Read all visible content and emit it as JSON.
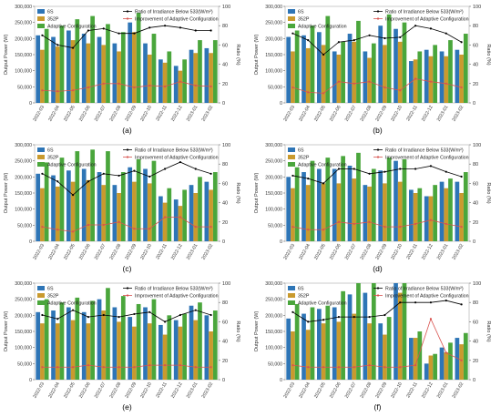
{
  "figure": {
    "panel_labels": [
      "(a)",
      "(b)",
      "(c)",
      "(d)",
      "(e)",
      "(f)"
    ]
  },
  "colors": {
    "s6": "#2e75b6",
    "s352p": "#c99a2e",
    "adaptive": "#4aa63c",
    "ratio": "#000000",
    "improvement": "#d9534f"
  },
  "chart_data": [
    {
      "type": "bar",
      "panel": "(a)",
      "categories": [
        "2022-03",
        "2022-04",
        "2022-05",
        "2022-06",
        "2022-07",
        "2022-08",
        "2022-09",
        "2022-10",
        "2022-11",
        "2022-12",
        "2023-01",
        "2023-02"
      ],
      "ylabel": "Output Power (W)",
      "y2label": "Ratio (%)",
      "ylim": [
        0,
        300000
      ],
      "y2lim": [
        0,
        100
      ],
      "yticks": [
        "0",
        "50,000",
        "100,000",
        "150,000",
        "200,000",
        "250,000",
        "300,000"
      ],
      "y2ticks": [
        "0",
        "20",
        "40",
        "60",
        "80",
        "100"
      ],
      "legend": [
        "6S",
        "352P",
        "Adaptive Configuration",
        "Ratio of Irradiance Below 533(W/m²)",
        "Improvement of Adaptive Configuration"
      ],
      "series": [
        {
          "name": "6S",
          "kind": "bar",
          "values": [
            210000,
            205000,
            225000,
            215000,
            205000,
            185000,
            250000,
            185000,
            135000,
            115000,
            165000,
            170000
          ]
        },
        {
          "name": "352P",
          "kind": "bar",
          "values": [
            165000,
            175000,
            195000,
            185000,
            180000,
            160000,
            220000,
            150000,
            125000,
            100000,
            155000,
            155000
          ]
        },
        {
          "name": "Adaptive Configuration",
          "kind": "bar",
          "values": [
            230000,
            240000,
            260000,
            270000,
            245000,
            220000,
            280000,
            215000,
            160000,
            135000,
            195000,
            195000
          ]
        },
        {
          "name": "Ratio of Irradiance Below 533(W/m²)",
          "kind": "line",
          "axis": "right",
          "values": [
            70,
            60,
            57,
            75,
            77,
            72,
            72,
            78,
            80,
            78,
            75,
            75
          ]
        },
        {
          "name": "Improvement of Adaptive Configuration",
          "kind": "line",
          "axis": "right",
          "values": [
            13,
            12,
            13,
            16,
            20,
            20,
            16,
            18,
            17,
            22,
            18,
            17
          ]
        }
      ]
    },
    {
      "type": "bar",
      "panel": "(b)",
      "categories": [
        "2022-03",
        "2022-04",
        "2022-05",
        "2022-06",
        "2022-07",
        "2022-08",
        "2022-09",
        "2022-10",
        "2022-11",
        "2022-12",
        "2023-01",
        "2023-02"
      ],
      "ylabel": "Output Power (W)",
      "y2label": "Ratio (%)",
      "ylim": [
        0,
        300000
      ],
      "y2lim": [
        0,
        100
      ],
      "yticks": [
        "0",
        "50,000",
        "100,000",
        "150,000",
        "200,000",
        "250,000",
        "300,000"
      ],
      "y2ticks": [
        "0",
        "20",
        "40",
        "60",
        "80",
        "100"
      ],
      "legend": [
        "6S",
        "352P",
        "Adaptive Configuration",
        "Ratio of Irradiance Below 533(W/m²)",
        "Improvement of Adaptive Configuration"
      ],
      "series": [
        {
          "name": "6S",
          "kind": "bar",
          "values": [
            205000,
            210000,
            220000,
            160000,
            215000,
            160000,
            240000,
            230000,
            130000,
            165000,
            160000,
            165000
          ]
        },
        {
          "name": "352P",
          "kind": "bar",
          "values": [
            160000,
            170000,
            180000,
            150000,
            190000,
            140000,
            180000,
            190000,
            135000,
            145000,
            145000,
            150000
          ]
        },
        {
          "name": "Adaptive Configuration",
          "kind": "bar",
          "values": [
            225000,
            240000,
            270000,
            190000,
            255000,
            185000,
            275000,
            250000,
            160000,
            180000,
            195000,
            215000
          ]
        },
        {
          "name": "Ratio of Irradiance Below 533(W/m²)",
          "kind": "line",
          "axis": "right",
          "values": [
            72,
            65,
            50,
            63,
            65,
            70,
            67,
            68,
            80,
            77,
            72,
            63
          ]
        },
        {
          "name": "Improvement of Adaptive Configuration",
          "kind": "line",
          "axis": "right",
          "values": [
            16,
            11,
            10,
            22,
            20,
            22,
            16,
            13,
            25,
            22,
            20,
            16
          ]
        }
      ]
    },
    {
      "type": "bar",
      "panel": "(c)",
      "categories": [
        "2022-03",
        "2022-04",
        "2022-05",
        "2022-06",
        "2022-07",
        "2022-08",
        "2022-09",
        "2022-10",
        "2022-11",
        "2022-12",
        "2023-01",
        "2023-02"
      ],
      "ylabel": "Output Power (W)",
      "y2label": "Ratio (%)",
      "ylim": [
        0,
        300000
      ],
      "y2lim": [
        0,
        100
      ],
      "yticks": [
        "0",
        "50,000",
        "100,000",
        "150,000",
        "200,000",
        "250,000",
        "300,000"
      ],
      "y2ticks": [
        "0",
        "20",
        "40",
        "60",
        "80",
        "100"
      ],
      "legend": [
        "6S",
        "352P",
        "Adaptive Configuration",
        "Ratio of Irradiance Below 533(W/m²)",
        "Improvement of Adaptive Configuration"
      ],
      "series": [
        {
          "name": "6S",
          "kind": "bar",
          "values": [
            210000,
            205000,
            220000,
            225000,
            215000,
            175000,
            230000,
            225000,
            140000,
            130000,
            175000,
            185000
          ]
        },
        {
          "name": "352P",
          "kind": "bar",
          "values": [
            165000,
            170000,
            185000,
            190000,
            175000,
            150000,
            185000,
            180000,
            120000,
            110000,
            150000,
            160000
          ]
        },
        {
          "name": "Adaptive Configuration",
          "kind": "bar",
          "values": [
            245000,
            260000,
            280000,
            285000,
            280000,
            215000,
            255000,
            250000,
            165000,
            160000,
            200000,
            215000
          ]
        },
        {
          "name": "Ratio of Irradiance Below 533(W/m²)",
          "kind": "line",
          "axis": "right",
          "values": [
            70,
            62,
            48,
            62,
            70,
            68,
            73,
            67,
            75,
            82,
            75,
            70
          ]
        },
        {
          "name": "Improvement of Adaptive Configuration",
          "kind": "line",
          "axis": "right",
          "values": [
            15,
            12,
            10,
            17,
            17,
            20,
            13,
            13,
            25,
            25,
            15,
            15
          ]
        }
      ]
    },
    {
      "type": "bar",
      "panel": "(d)",
      "categories": [
        "2022-03",
        "2022-04",
        "2022-05",
        "2022-06",
        "2022-07",
        "2022-08",
        "2022-09",
        "2022-10",
        "2022-11",
        "2022-12",
        "2023-01",
        "2023-02"
      ],
      "ylabel": "Output Power (W)",
      "y2label": "Ratio (%)",
      "ylim": [
        0,
        300000
      ],
      "y2lim": [
        0,
        100
      ],
      "yticks": [
        "0",
        "50,000",
        "100,000",
        "150,000",
        "200,000",
        "250,000",
        "300,000"
      ],
      "y2ticks": [
        "0",
        "20",
        "40",
        "60",
        "80",
        "100"
      ],
      "legend": [
        "6S",
        "352P",
        "Adaptive Configuration",
        "Ratio of Irradiance Below 533(W/m²)",
        "Improvement of Adaptive Configuration"
      ],
      "series": [
        {
          "name": "6S",
          "kind": "bar",
          "values": [
            200000,
            215000,
            225000,
            225000,
            235000,
            175000,
            220000,
            250000,
            160000,
            140000,
            185000,
            185000
          ]
        },
        {
          "name": "352P",
          "kind": "bar",
          "values": [
            165000,
            175000,
            180000,
            180000,
            195000,
            170000,
            180000,
            185000,
            150000,
            140000,
            165000,
            150000
          ]
        },
        {
          "name": "Adaptive Configuration",
          "kind": "bar",
          "values": [
            230000,
            250000,
            260000,
            265000,
            275000,
            225000,
            260000,
            255000,
            165000,
            175000,
            195000,
            215000
          ]
        },
        {
          "name": "Ratio of Irradiance Below 533(W/m²)",
          "kind": "line",
          "axis": "right",
          "values": [
            68,
            65,
            60,
            75,
            75,
            70,
            72,
            75,
            75,
            78,
            72,
            67
          ]
        },
        {
          "name": "Improvement of Adaptive Configuration",
          "kind": "line",
          "axis": "right",
          "values": [
            15,
            12,
            12,
            20,
            18,
            20,
            15,
            15,
            18,
            22,
            18,
            15
          ]
        }
      ]
    },
    {
      "type": "bar",
      "panel": "(e)",
      "categories": [
        "2022-03",
        "2022-04",
        "2022-05",
        "2022-06",
        "2022-07",
        "2022-08",
        "2022-09",
        "2022-10",
        "2022-11",
        "2022-12",
        "2023-01",
        "2023-02"
      ],
      "ylabel": "Output Power (W)",
      "y2label": "Ratio (%)",
      "ylim": [
        0,
        300000
      ],
      "y2lim": [
        0,
        100
      ],
      "yticks": [
        "0",
        "50,000",
        "100,000",
        "150,000",
        "200,000",
        "250,000",
        "300,000"
      ],
      "y2ticks": [
        "0",
        "20",
        "40",
        "60",
        "80",
        "100"
      ],
      "legend": [
        "6S",
        "352P",
        "Adaptive Configuration",
        "Ratio of Irradiance Below 533(W/m²)",
        "Improvement of Adaptive Configuration"
      ],
      "series": [
        {
          "name": "6S",
          "kind": "bar",
          "values": [
            210000,
            215000,
            225000,
            210000,
            250000,
            225000,
            195000,
            225000,
            170000,
            185000,
            230000,
            200000
          ]
        },
        {
          "name": "352P",
          "kind": "bar",
          "values": [
            175000,
            175000,
            185000,
            175000,
            215000,
            180000,
            165000,
            175000,
            140000,
            165000,
            185000,
            150000
          ]
        },
        {
          "name": "Adaptive Configuration",
          "kind": "bar",
          "values": [
            250000,
            240000,
            255000,
            245000,
            285000,
            260000,
            235000,
            250000,
            200000,
            205000,
            240000,
            215000
          ]
        },
        {
          "name": "Ratio of Irradiance Below 533(W/m²)",
          "kind": "line",
          "axis": "right",
          "values": [
            67,
            63,
            72,
            65,
            67,
            65,
            68,
            70,
            60,
            67,
            72,
            67
          ]
        },
        {
          "name": "Improvement of Adaptive Configuration",
          "kind": "line",
          "axis": "right",
          "values": [
            13,
            13,
            13,
            15,
            13,
            13,
            13,
            15,
            15,
            15,
            13,
            13
          ]
        }
      ]
    },
    {
      "type": "bar",
      "panel": "(f)",
      "categories": [
        "2022-03",
        "2022-04",
        "2022-05",
        "2022-06",
        "2022-07",
        "2022-08",
        "2022-09",
        "2022-10",
        "2022-11",
        "2022-12",
        "2023-01",
        "2023-02"
      ],
      "ylabel": "Output Power (W)",
      "y2label": "Ratio (%)",
      "ylim": [
        0,
        300000
      ],
      "y2lim": [
        0,
        100
      ],
      "yticks": [
        "0",
        "50,000",
        "100,000",
        "150,000",
        "200,000",
        "250,000",
        "300,000"
      ],
      "y2ticks": [
        "0",
        "20",
        "40",
        "60",
        "80",
        "100"
      ],
      "legend": [
        "6S",
        "352P",
        "Adaptive Configuration",
        "Ratio of Irradiance Below 533(W/m²)",
        "Improvement of Adaptive Configuration"
      ],
      "series": [
        {
          "name": "6S",
          "kind": "bar",
          "values": [
            190000,
            205000,
            220000,
            225000,
            265000,
            270000,
            175000,
            300000,
            130000,
            50000,
            100000,
            130000
          ]
        },
        {
          "name": "352P",
          "kind": "bar",
          "values": [
            150000,
            155000,
            175000,
            180000,
            205000,
            175000,
            140000,
            270000,
            130000,
            75000,
            85000,
            110000
          ]
        },
        {
          "name": "Adaptive Configuration",
          "kind": "bar",
          "values": [
            235000,
            225000,
            230000,
            275000,
            300000,
            300000,
            195000,
            300000,
            150000,
            80000,
            115000,
            145000
          ]
        },
        {
          "name": "Ratio of Irradiance Below 533(W/m²)",
          "kind": "line",
          "axis": "right",
          "values": [
            70,
            60,
            62,
            65,
            65,
            65,
            67,
            80,
            80,
            80,
            82,
            78
          ]
        },
        {
          "name": "Improvement of Adaptive Configuration",
          "kind": "line",
          "axis": "right",
          "values": [
            15,
            13,
            13,
            13,
            13,
            15,
            13,
            13,
            15,
            63,
            28,
            20
          ]
        }
      ]
    }
  ]
}
